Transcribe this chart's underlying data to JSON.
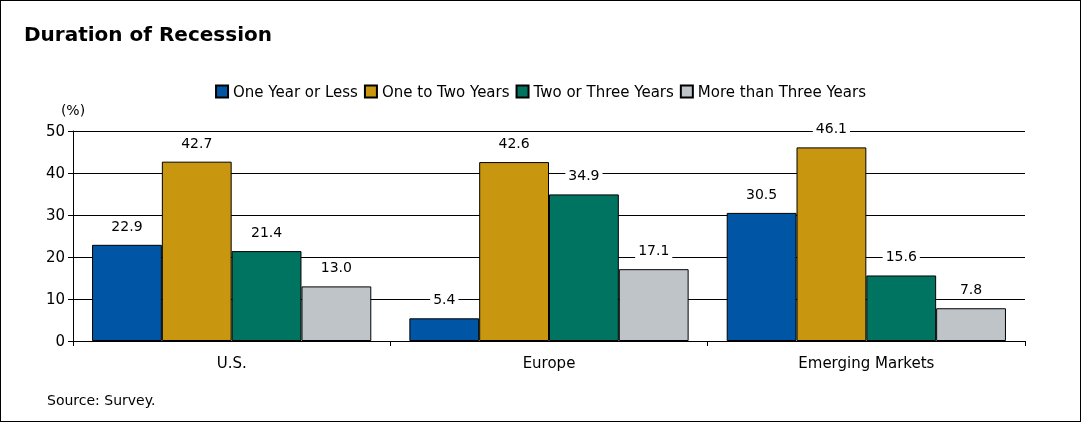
{
  "chart_data": {
    "type": "bar",
    "title": "Duration of Recession",
    "ylabel": "(%)",
    "categories": [
      "U.S.",
      "Europe",
      "Emerging Markets"
    ],
    "series": [
      {
        "name": "One Year or Less",
        "color": "#0055a4",
        "values": [
          22.9,
          5.4,
          30.5
        ],
        "value_labels": [
          "22.9",
          "5.4",
          "30.5"
        ]
      },
      {
        "name": "One to Two Years",
        "color": "#c8960f",
        "values": [
          42.7,
          42.6,
          46.1
        ],
        "value_labels": [
          "42.7",
          "42.6",
          "46.1"
        ]
      },
      {
        "name": "Two or Three Years",
        "color": "#007461",
        "values": [
          21.4,
          34.9,
          15.6
        ],
        "value_labels": [
          "21.4",
          "34.9",
          "15.6"
        ]
      },
      {
        "name": "More than Three Years",
        "color": "#bfc4c9",
        "values": [
          13.0,
          17.1,
          7.8
        ],
        "value_labels": [
          "13.0",
          "17.1",
          "7.8"
        ]
      }
    ],
    "ylim": [
      0,
      50
    ],
    "yticks": [
      0,
      10,
      20,
      30,
      40,
      50
    ],
    "grid": "y",
    "legend": "top",
    "annotations": [
      "Source: Survey."
    ]
  }
}
